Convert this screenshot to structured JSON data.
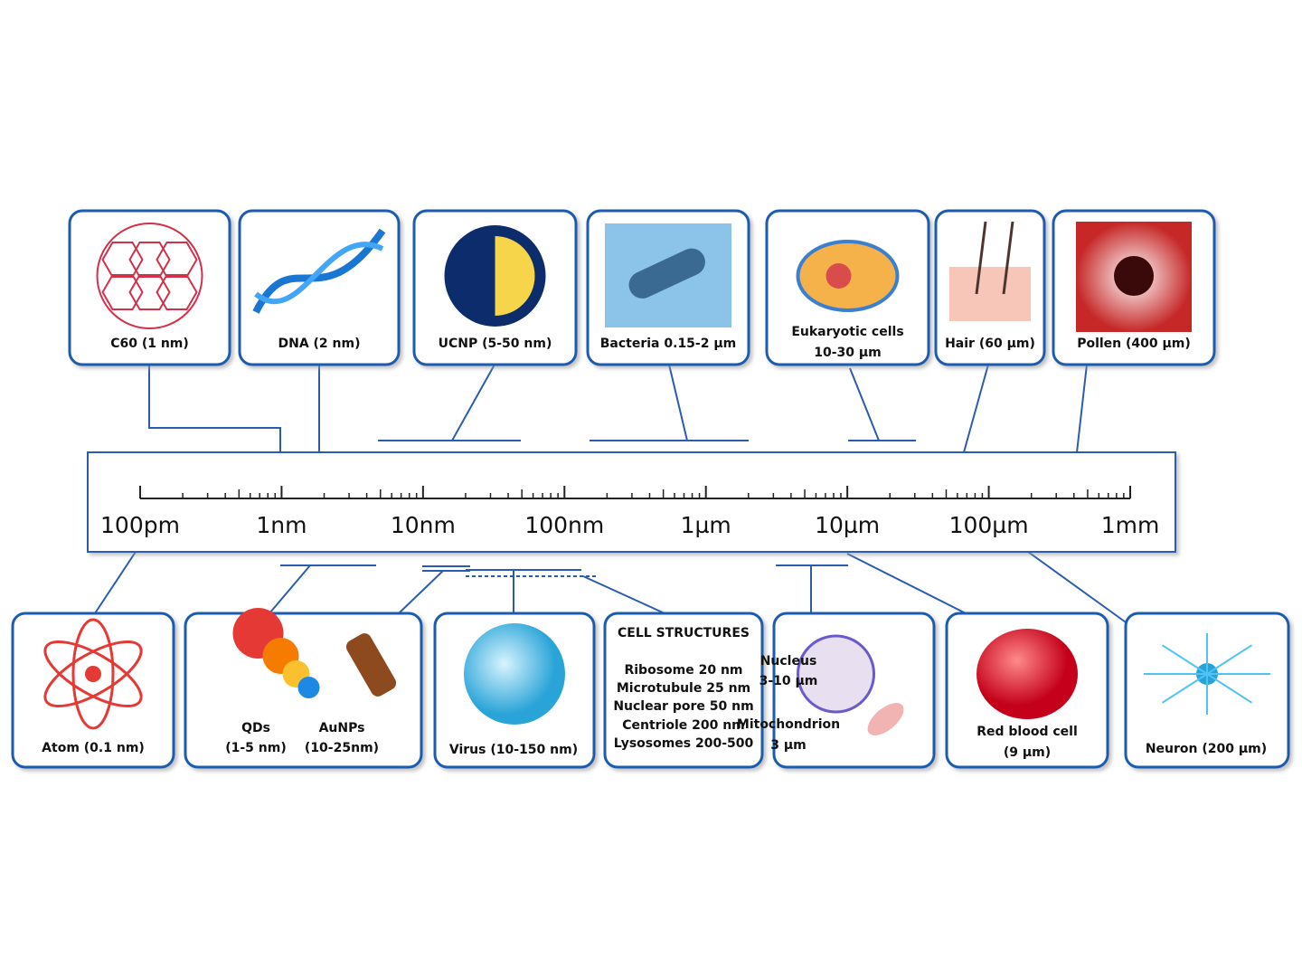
{
  "top_items": [
    {
      "lines": [
        "C60 (1 nm)"
      ]
    },
    {
      "lines": [
        "DNA (2 nm)"
      ]
    },
    {
      "lines": [
        "UCNP (5-50 nm)"
      ]
    },
    {
      "lines": [
        "Bacteria 0.15-2 µm"
      ]
    },
    {
      "lines": [
        "Eukaryotic cells",
        "10-30 µm"
      ]
    },
    {
      "lines": [
        "Hair (60 µm)"
      ]
    },
    {
      "lines": [
        "Pollen (400 µm)"
      ]
    }
  ],
  "scale": {
    "labels": [
      "100pm",
      "1nm",
      "10nm",
      "100nm",
      "1µm",
      "10µm",
      "100µm",
      "1mm"
    ]
  },
  "bottom_items": [
    {
      "texts": [
        "Atom (0.1 nm)"
      ]
    },
    {
      "texts": [
        "QDs",
        "(1-5 nm)",
        "AuNPs",
        "(10-25nm)"
      ]
    },
    {
      "texts": [
        "Virus (10-150 nm)"
      ]
    },
    {
      "texts": [
        "CELL STRUCTURES",
        "Ribosome 20 nm",
        "Microtubule 25 nm",
        "Nuclear pore 50 nm",
        "Centriole 200 nm",
        "Lysosomes 200-500"
      ]
    },
    {
      "texts": [
        "Nucleus",
        "3-10 µm",
        "Mitochondrion",
        "3 µm"
      ]
    },
    {
      "texts": [
        "Red blood cell",
        "(9 µm)"
      ]
    },
    {
      "texts": [
        "Neuron (200 µm)"
      ]
    }
  ]
}
